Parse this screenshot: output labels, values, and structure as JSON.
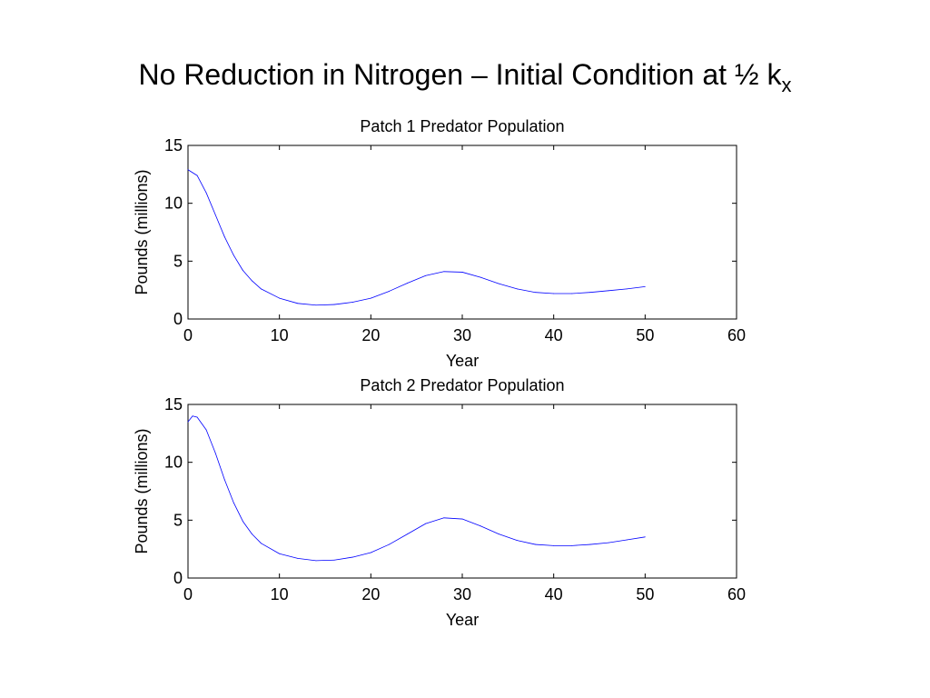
{
  "slide": {
    "title": "No Reduction in Nitrogen – Initial Condition at ½ k",
    "title_subscript": "x"
  },
  "colors": {
    "series": "#0000ff",
    "axes": "#000000",
    "background": "#ffffff"
  },
  "chart_data": [
    {
      "type": "line",
      "title": "Patch 1 Predator Population",
      "xlabel": "Year",
      "ylabel": "Pounds (millions)",
      "xlim": [
        0,
        60
      ],
      "ylim": [
        0,
        15
      ],
      "xticks": [
        0,
        10,
        20,
        30,
        40,
        50,
        60
      ],
      "yticks": [
        0,
        5,
        10,
        15
      ],
      "grid": false,
      "legend": "none",
      "series": [
        {
          "x": [
            0,
            1,
            2,
            3,
            4,
            5,
            6,
            7,
            8,
            10,
            12,
            14,
            16,
            18,
            20,
            22,
            24,
            26,
            28,
            30,
            32,
            34,
            36,
            38,
            40,
            42,
            44,
            46,
            48,
            50
          ],
          "values": [
            12.9,
            12.4,
            10.9,
            9.0,
            7.1,
            5.5,
            4.2,
            3.3,
            2.6,
            1.8,
            1.35,
            1.2,
            1.25,
            1.45,
            1.8,
            2.4,
            3.1,
            3.75,
            4.1,
            4.05,
            3.6,
            3.05,
            2.6,
            2.3,
            2.2,
            2.2,
            2.3,
            2.45,
            2.6,
            2.8
          ]
        }
      ]
    },
    {
      "type": "line",
      "title": "Patch 2 Predator Population",
      "xlabel": "Year",
      "ylabel": "Pounds (millions)",
      "xlim": [
        0,
        60
      ],
      "ylim": [
        0,
        15
      ],
      "xticks": [
        0,
        10,
        20,
        30,
        40,
        50,
        60
      ],
      "yticks": [
        0,
        5,
        10,
        15
      ],
      "grid": false,
      "legend": "none",
      "series": [
        {
          "x": [
            0,
            0.5,
            1,
            2,
            3,
            4,
            5,
            6,
            7,
            8,
            10,
            12,
            14,
            16,
            18,
            20,
            22,
            24,
            26,
            28,
            30,
            32,
            34,
            36,
            38,
            40,
            42,
            44,
            46,
            48,
            50
          ],
          "values": [
            13.5,
            14.0,
            13.9,
            12.8,
            10.8,
            8.5,
            6.5,
            4.9,
            3.8,
            3.0,
            2.1,
            1.7,
            1.5,
            1.55,
            1.8,
            2.2,
            2.9,
            3.8,
            4.7,
            5.2,
            5.1,
            4.5,
            3.8,
            3.25,
            2.9,
            2.8,
            2.8,
            2.9,
            3.05,
            3.3,
            3.55
          ]
        }
      ]
    }
  ]
}
